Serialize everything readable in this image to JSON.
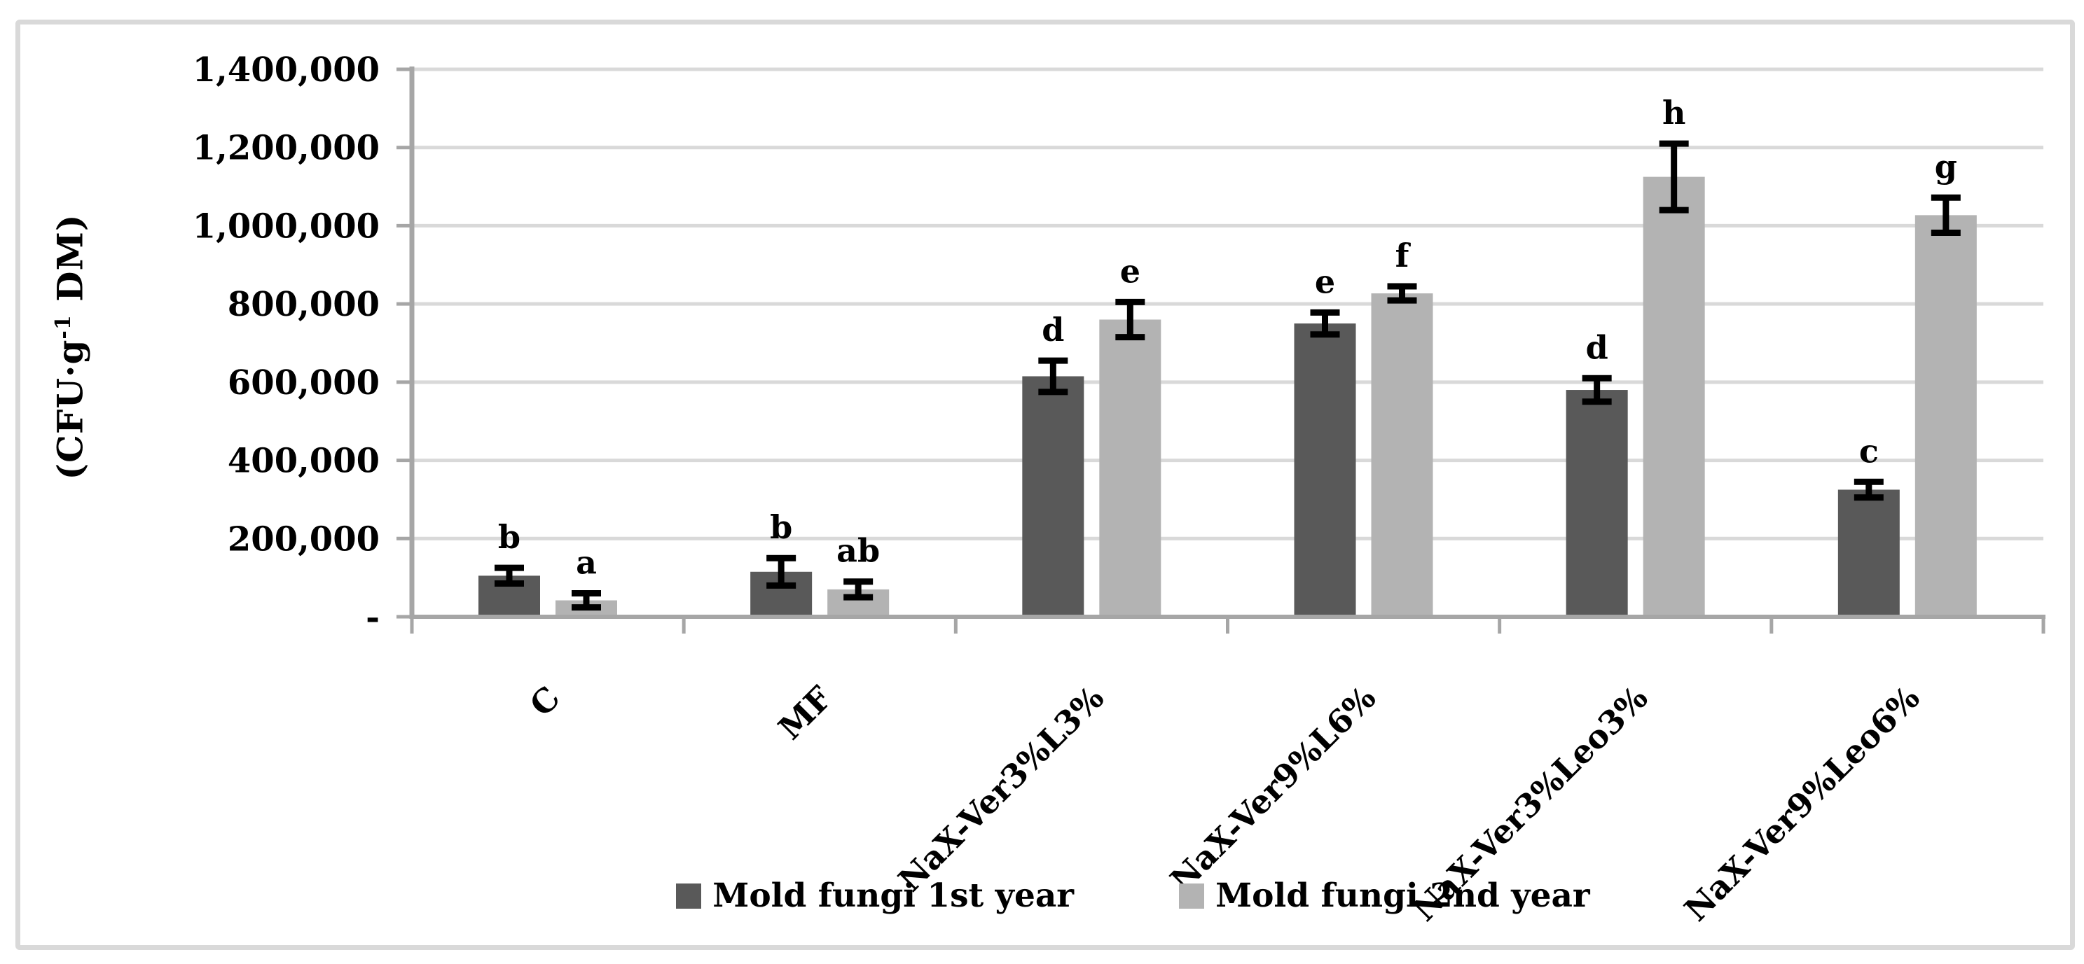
{
  "figure": {
    "background": "#ffffff",
    "border_color": "#d9d9d9"
  },
  "chart_data": {
    "type": "bar",
    "title": "",
    "xlabel": "",
    "ylabel": "(CFU·g⁻¹ DM)",
    "ylabel_parts": {
      "pre": "(CFU·g",
      "sup": "-1",
      "post": " DM)"
    },
    "categories": [
      "C",
      "MF",
      "NaX-Ver3%L3%",
      "NaX-Ver9%L6%",
      "NaX-Ver3%Leo3%",
      "NaX-Ver9%Leo6%"
    ],
    "series": [
      {
        "name": "Mold fungi 1st year",
        "color": "#595959",
        "values": [
          105000,
          115000,
          615000,
          750000,
          580000,
          325000
        ],
        "errors": [
          20000,
          35000,
          40000,
          28000,
          30000,
          20000
        ],
        "letters": [
          "b",
          "b",
          "d",
          "e",
          "d",
          "c"
        ]
      },
      {
        "name": "Mold fungi 2nd year",
        "color": "#b3b3b3",
        "values": [
          42000,
          70000,
          760000,
          827000,
          1125000,
          1027000
        ],
        "errors": [
          18000,
          20000,
          45000,
          18000,
          85000,
          45000
        ],
        "letters": [
          "a",
          "ab",
          "e",
          "f",
          "h",
          "g"
        ]
      }
    ],
    "ylim": [
      0,
      1400000
    ],
    "y_tick_step": 200000,
    "y_tick_labels": [
      "-",
      "200,000",
      "400,000",
      "600,000",
      "800,000",
      "1,000,000",
      "1,200,000",
      "1,400,000"
    ],
    "grid": true,
    "legend_position": "bottom",
    "axis_color": "#a6a6a6",
    "gridline_color": "#d9d9d9",
    "error_bar_color": "#000000"
  }
}
